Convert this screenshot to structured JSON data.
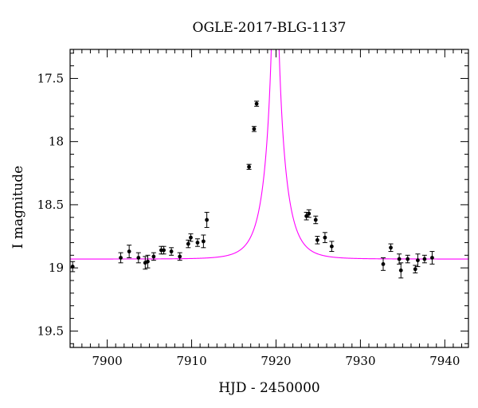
{
  "chart_data": {
    "type": "scatter",
    "title": "OGLE-2017-BLG-1137",
    "xlabel": "HJD - 2450000",
    "ylabel": "I magnitude",
    "xlim": [
      7895.6,
      7942.8
    ],
    "ylim": [
      19.63,
      17.27
    ],
    "y_inverted": true,
    "x_ticks": [
      7900,
      7910,
      7920,
      7930,
      7940
    ],
    "x_tick_labels": [
      "7900",
      "7910",
      "7920",
      "7930",
      "7940"
    ],
    "y_ticks": [
      17.5,
      18,
      18.5,
      19,
      19.5
    ],
    "y_tick_labels": [
      "17.5",
      "18",
      "18.5",
      "19",
      "19.5"
    ],
    "grid": false,
    "legend": "none",
    "colors": {
      "data": "#000000",
      "model": "#ff00ff"
    },
    "series": [
      {
        "kind": "points",
        "points": [
          {
            "x": 7895.9,
            "y": 18.99,
            "err": 0.04
          },
          {
            "x": 7901.6,
            "y": 18.92,
            "err": 0.04
          },
          {
            "x": 7902.6,
            "y": 18.87,
            "err": 0.05
          },
          {
            "x": 7903.7,
            "y": 18.92,
            "err": 0.04
          },
          {
            "x": 7904.5,
            "y": 18.96,
            "err": 0.05
          },
          {
            "x": 7904.8,
            "y": 18.95,
            "err": 0.05
          },
          {
            "x": 7905.5,
            "y": 18.91,
            "err": 0.03
          },
          {
            "x": 7906.4,
            "y": 18.86,
            "err": 0.03
          },
          {
            "x": 7906.7,
            "y": 18.86,
            "err": 0.03
          },
          {
            "x": 7907.6,
            "y": 18.87,
            "err": 0.03
          },
          {
            "x": 7908.6,
            "y": 18.91,
            "err": 0.03
          },
          {
            "x": 7909.6,
            "y": 18.81,
            "err": 0.03
          },
          {
            "x": 7909.9,
            "y": 18.76,
            "err": 0.03
          },
          {
            "x": 7910.7,
            "y": 18.8,
            "err": 0.03
          },
          {
            "x": 7911.4,
            "y": 18.79,
            "err": 0.05
          },
          {
            "x": 7911.8,
            "y": 18.62,
            "err": 0.06
          },
          {
            "x": 7916.8,
            "y": 18.2,
            "err": 0.02
          },
          {
            "x": 7917.4,
            "y": 17.9,
            "err": 0.02
          },
          {
            "x": 7917.7,
            "y": 17.7,
            "err": 0.02
          },
          {
            "x": 7923.6,
            "y": 18.59,
            "err": 0.03
          },
          {
            "x": 7923.9,
            "y": 18.57,
            "err": 0.03
          },
          {
            "x": 7924.7,
            "y": 18.62,
            "err": 0.03
          },
          {
            "x": 7924.9,
            "y": 18.78,
            "err": 0.03
          },
          {
            "x": 7925.8,
            "y": 18.76,
            "err": 0.04
          },
          {
            "x": 7926.6,
            "y": 18.83,
            "err": 0.04
          },
          {
            "x": 7932.7,
            "y": 18.97,
            "err": 0.05
          },
          {
            "x": 7933.6,
            "y": 18.84,
            "err": 0.03
          },
          {
            "x": 7934.6,
            "y": 18.93,
            "err": 0.04
          },
          {
            "x": 7934.8,
            "y": 19.02,
            "err": 0.06
          },
          {
            "x": 7935.6,
            "y": 18.93,
            "err": 0.03
          },
          {
            "x": 7936.5,
            "y": 19.01,
            "err": 0.03
          },
          {
            "x": 7936.8,
            "y": 18.94,
            "err": 0.05
          },
          {
            "x": 7937.6,
            "y": 18.93,
            "err": 0.03
          },
          {
            "x": 7938.5,
            "y": 18.92,
            "err": 0.05
          }
        ]
      },
      {
        "kind": "model_curve",
        "model": {
          "baseline": 18.93,
          "t0": 7919.9,
          "tE": 2.16,
          "u0": 0.05,
          "fs": 1.0
        }
      }
    ]
  }
}
